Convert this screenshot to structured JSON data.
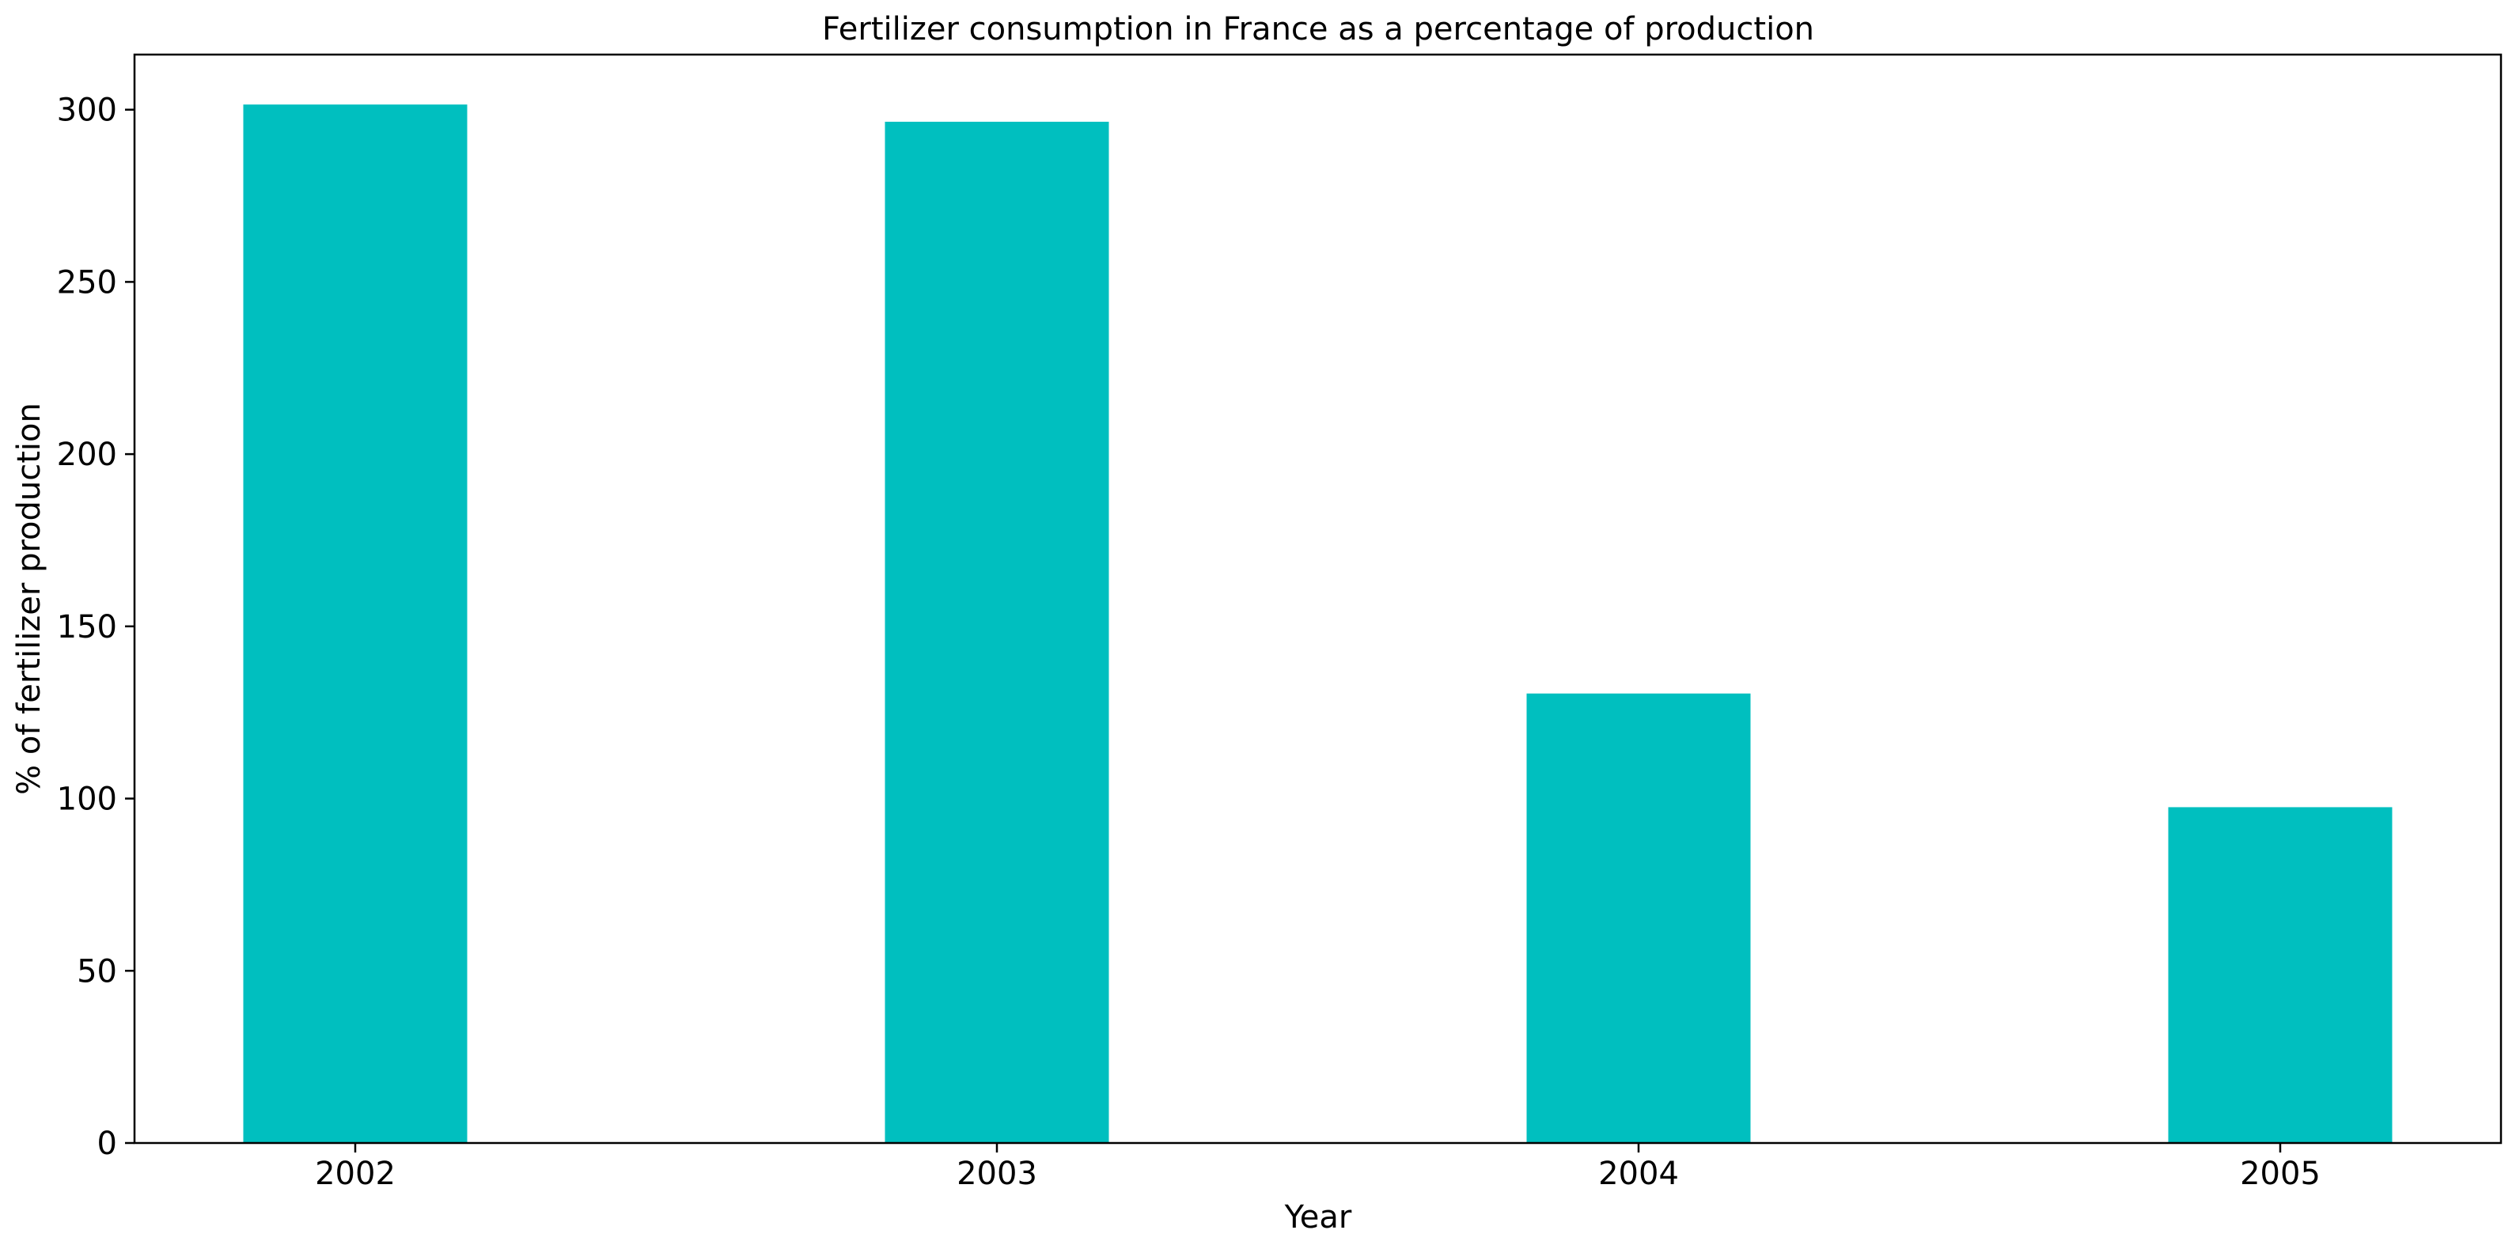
{
  "chart_data": {
    "type": "bar",
    "title": "Fertilizer consumption in France as a percentage of production",
    "xlabel": "Year",
    "ylabel": "% of fertilizer production",
    "categories": [
      "2002",
      "2003",
      "2004",
      "2005"
    ],
    "values": [
      301.5,
      296.5,
      130.5,
      97.5
    ],
    "ylim": [
      0,
      316
    ],
    "yticks": [
      0,
      50,
      100,
      150,
      200,
      250,
      300
    ],
    "bar_color": "#00BFBF",
    "grid": false,
    "legend": "none"
  }
}
